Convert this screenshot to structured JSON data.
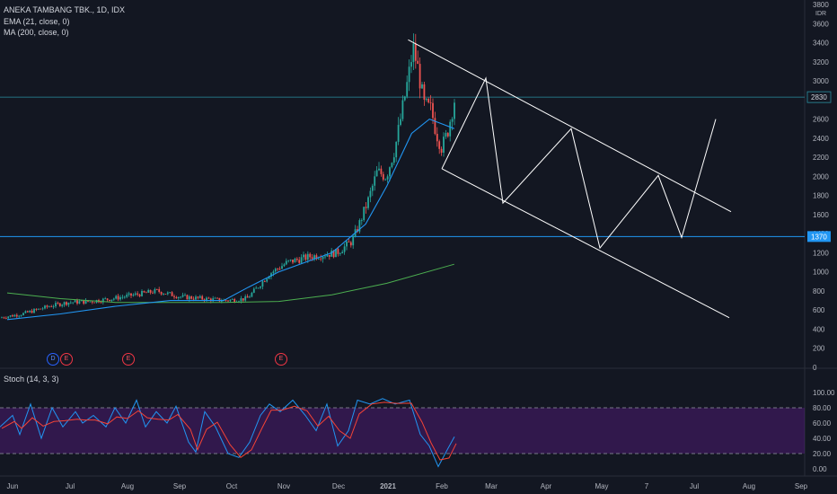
{
  "window": {
    "symbol_line": "ANEKA TAMBANG TBK., 1D, IDX",
    "indicators": [
      "EMA (21, close, 0)",
      "MA (200, close, 0)"
    ],
    "oscillator_label": "Stoch (14, 3, 3)"
  },
  "price_axis": {
    "ticks": [
      "3800",
      "3600",
      "3400",
      "3200",
      "3000",
      "2800",
      "2600",
      "2400",
      "2200",
      "2000",
      "1800",
      "1600",
      "1400",
      "1200",
      "1000",
      "800",
      "600",
      "400",
      "200",
      "0"
    ],
    "currency": "IDR",
    "current_price_label": "2830",
    "level_label": "1370"
  },
  "stoch_axis": {
    "ticks": [
      "100.00",
      "80.00",
      "60.00",
      "40.00",
      "20.00",
      "0.00"
    ]
  },
  "time_axis": {
    "labels": [
      "Jun",
      "Jul",
      "Aug",
      "Sep",
      "Oct",
      "Nov",
      "Dec",
      "2021",
      "Feb",
      "Mar",
      "Apr",
      "May",
      "7",
      "Jul",
      "Aug",
      "Sep"
    ]
  },
  "events": [
    {
      "letter": "D",
      "kind": "dividend"
    },
    {
      "letter": "E",
      "kind": "earnings"
    },
    {
      "letter": "E",
      "kind": "earnings"
    },
    {
      "letter": "E",
      "kind": "earnings"
    }
  ],
  "colors": {
    "background": "#131722",
    "candle_up": "#26a69a",
    "candle_down": "#ef5350",
    "ema": "#2196f3",
    "ma": "#4caf50",
    "horizontal_line": "#2196f3",
    "stoch_k": "#2196f3",
    "stoch_d": "#f44336",
    "stoch_band": "#6a1b9a"
  },
  "chart_data": {
    "type": "candlestick",
    "ylim": [
      0,
      3800
    ],
    "price_marks": {
      "current": 2830,
      "horizontal_level": 1370,
      "top_level": 2830
    },
    "ema_21": [
      [
        "2020-06-01",
        500
      ],
      [
        "2020-07-01",
        560
      ],
      [
        "2020-08-01",
        640
      ],
      [
        "2020-09-01",
        700
      ],
      [
        "2020-10-01",
        700
      ],
      [
        "2020-10-15",
        840
      ],
      [
        "2020-11-01",
        1000
      ],
      [
        "2020-12-01",
        1200
      ],
      [
        "2020-12-20",
        1500
      ],
      [
        "2021-01-01",
        1900
      ],
      [
        "2021-01-15",
        2450
      ],
      [
        "2021-01-25",
        2600
      ],
      [
        "2021-02-01",
        2550
      ],
      [
        "2021-02-08",
        2500
      ]
    ],
    "ma_200": [
      [
        "2020-06-01",
        780
      ],
      [
        "2020-07-01",
        720
      ],
      [
        "2020-08-01",
        680
      ],
      [
        "2020-09-01",
        680
      ],
      [
        "2020-10-01",
        680
      ],
      [
        "2020-11-01",
        690
      ],
      [
        "2020-12-01",
        760
      ],
      [
        "2021-01-01",
        880
      ],
      [
        "2021-02-08",
        1080
      ]
    ],
    "drawn_channel": {
      "upper": [
        [
          "2021-01-13",
          3430
        ],
        [
          "2021-07-12",
          1630
        ]
      ],
      "lower": [
        [
          "2021-02-01",
          2080
        ],
        [
          "2021-07-12",
          520
        ]
      ]
    },
    "drawn_projection": [
      [
        "2021-02-01",
        2080
      ],
      [
        "2021-02-24",
        3030
      ],
      [
        "2021-03-10",
        1720
      ],
      [
        "2021-04-12",
        2500
      ],
      [
        "2021-04-30",
        1250
      ],
      [
        "2021-05-30",
        2010
      ],
      [
        "2021-06-13",
        1360
      ],
      [
        "2021-07-12",
        2600
      ]
    ],
    "stochastic": {
      "ylim": [
        0,
        100
      ],
      "bands": [
        20,
        80
      ],
      "k_last": 42,
      "d_last": 35
    }
  }
}
